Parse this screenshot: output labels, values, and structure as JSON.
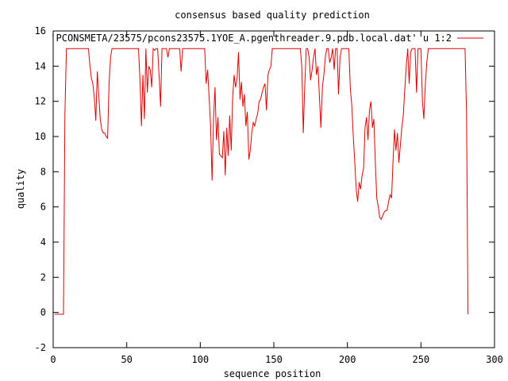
{
  "chart_data": {
    "type": "line",
    "title": "consensus based quality prediction",
    "xlabel": "sequence position",
    "ylabel": "quality",
    "xlim": [
      0,
      300
    ],
    "ylim": [
      -2,
      16
    ],
    "x_ticks": [
      0,
      50,
      100,
      150,
      200,
      250,
      300
    ],
    "y_ticks": [
      -2,
      0,
      2,
      4,
      6,
      8,
      10,
      12,
      14,
      16
    ],
    "grid": false,
    "legend_position": "top-right",
    "series": [
      {
        "name": "'PCONSMETA/23575/pcons23575.1YOE_A.pgenthreader.9.pdb.local.dat' u 1:2",
        "color": "#e00000",
        "x": [
          1,
          7,
          8,
          9,
          24,
          25,
          26,
          27,
          28,
          29,
          30,
          31,
          32,
          33,
          34,
          35,
          36,
          37,
          38,
          39,
          40,
          41,
          42,
          58,
          59,
          60,
          61,
          62,
          63,
          64,
          65,
          66,
          67,
          68,
          69,
          70,
          71,
          72,
          73,
          74,
          75,
          76,
          77,
          78,
          79,
          86,
          87,
          88,
          103,
          104,
          105,
          106,
          107,
          108,
          109,
          110,
          111,
          112,
          113,
          114,
          115,
          116,
          117,
          118,
          119,
          120,
          121,
          122,
          123,
          124,
          125,
          126,
          127,
          128,
          129,
          130,
          131,
          132,
          133,
          134,
          135,
          136,
          137,
          138,
          139,
          140,
          141,
          142,
          143,
          144,
          145,
          146,
          147,
          148,
          149,
          150,
          151,
          152,
          168,
          169,
          170,
          171,
          172,
          173,
          174,
          175,
          176,
          177,
          178,
          179,
          180,
          181,
          182,
          183,
          184,
          185,
          186,
          187,
          188,
          189,
          190,
          191,
          192,
          193,
          194,
          195,
          196,
          197,
          198,
          199,
          200,
          201,
          202,
          203,
          204,
          205,
          206,
          207,
          208,
          209,
          210,
          211,
          212,
          213,
          214,
          215,
          216,
          217,
          218,
          219,
          220,
          221,
          222,
          223,
          224,
          225,
          226,
          227,
          228,
          229,
          230,
          231,
          232,
          233,
          234,
          235,
          236,
          237,
          238,
          239,
          240,
          241,
          242,
          243,
          244,
          245,
          246,
          247,
          248,
          249,
          250,
          251,
          252,
          253,
          254,
          255,
          256,
          257,
          258,
          259,
          280,
          281,
          282
        ],
        "y": [
          -0.1,
          -0.1,
          11.3,
          15.0,
          15.0,
          14.0,
          13.3,
          13.0,
          12.2,
          10.9,
          13.7,
          12.3,
          11.0,
          10.4,
          10.2,
          10.2,
          10.0,
          9.9,
          13.0,
          14.5,
          15.0,
          15.0,
          15.0,
          15.0,
          13.3,
          10.6,
          13.5,
          11.0,
          15.0,
          12.5,
          14.0,
          13.8,
          12.8,
          15.0,
          14.9,
          15.0,
          15.0,
          13.5,
          11.7,
          15.0,
          15.0,
          15.0,
          15.0,
          14.5,
          15.0,
          15.0,
          13.7,
          15.0,
          15.0,
          13.0,
          13.8,
          12.2,
          10.6,
          7.5,
          11.0,
          12.8,
          9.8,
          11.1,
          9.0,
          8.9,
          8.8,
          10.3,
          7.8,
          10.5,
          8.9,
          11.2,
          9.2,
          12.2,
          13.5,
          12.8,
          13.3,
          14.8,
          12.1,
          13.1,
          11.7,
          12.4,
          10.6,
          11.4,
          8.7,
          9.2,
          10.2,
          10.8,
          10.6,
          11.0,
          11.3,
          12.0,
          12.1,
          12.5,
          12.8,
          13.0,
          11.5,
          13.5,
          13.8,
          14.0,
          15.0,
          15.0,
          15.0,
          15.0,
          15.0,
          14.0,
          10.2,
          12.8,
          15.0,
          15.0,
          14.5,
          13.2,
          13.8,
          14.5,
          15.0,
          13.5,
          14.0,
          12.2,
          10.5,
          12.8,
          13.5,
          14.5,
          15.0,
          15.0,
          14.2,
          14.5,
          15.0,
          13.8,
          15.0,
          15.0,
          12.4,
          14.5,
          15.0,
          15.0,
          15.0,
          15.0,
          15.0,
          15.0,
          12.7,
          11.8,
          10.0,
          8.6,
          7.0,
          6.3,
          7.4,
          7.0,
          7.8,
          8.2,
          10.5,
          11.1,
          9.8,
          11.5,
          12.0,
          10.5,
          11.0,
          8.5,
          6.5,
          6.0,
          5.4,
          5.3,
          5.5,
          5.7,
          5.8,
          5.8,
          6.3,
          6.7,
          6.5,
          8.5,
          10.4,
          9.2,
          10.2,
          8.5,
          9.5,
          10.5,
          11.2,
          12.6,
          14.0,
          15.0,
          13.0,
          14.8,
          15.0,
          15.0,
          15.0,
          12.5,
          15.0,
          15.0,
          15.0,
          12.0,
          11.0,
          13.0,
          14.2,
          15.0,
          15.0,
          15.0,
          15.0,
          15.0,
          15.0,
          11.3,
          -0.1
        ]
      }
    ]
  }
}
